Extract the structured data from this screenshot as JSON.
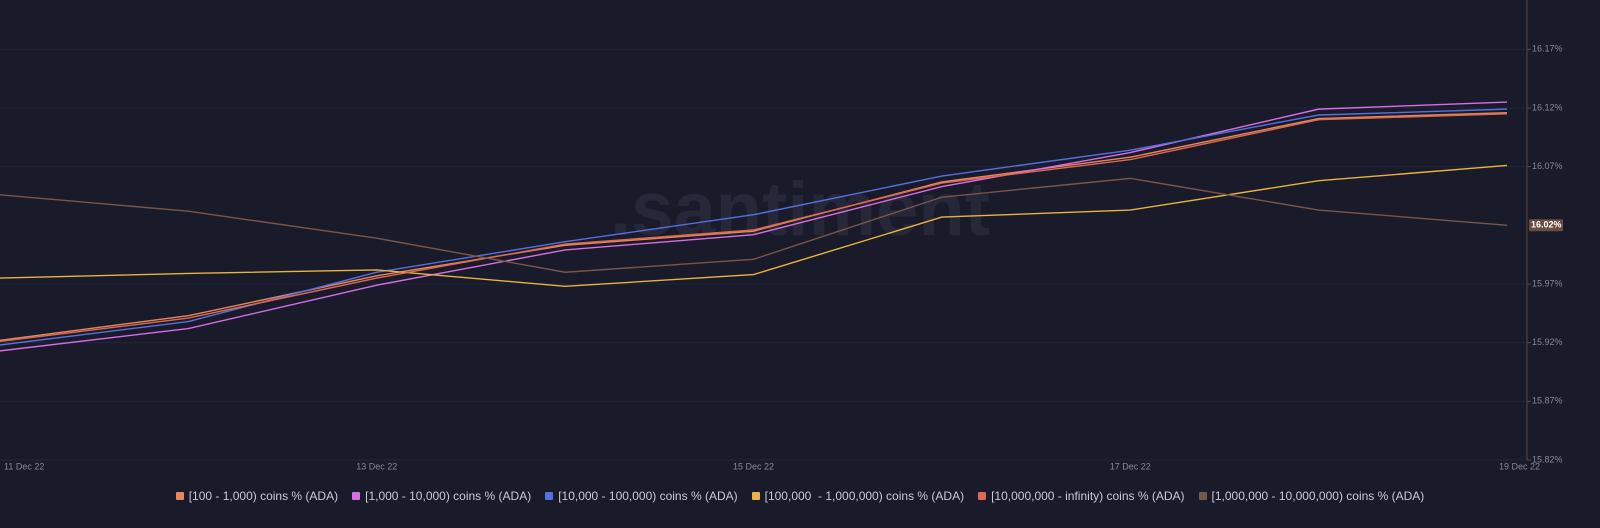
{
  "chart_data": {
    "type": "line",
    "watermark": ".santiment",
    "categories": [
      "11 Dec 22",
      null,
      "13 Dec 22",
      null,
      "15 Dec 22",
      null,
      "17 Dec 22",
      null,
      "19 Dec 22"
    ],
    "ylim": [
      15.82,
      16.212
    ],
    "yticks": [
      {
        "value": 15.82,
        "label": "15.82%"
      },
      {
        "value": 15.87,
        "label": "15.87%"
      },
      {
        "value": 15.92,
        "label": "15.92%"
      },
      {
        "value": 15.97,
        "label": "15.97%"
      },
      {
        "value": 16.07,
        "label": "16.07%"
      },
      {
        "value": 16.12,
        "label": "16.12%"
      },
      {
        "value": 16.17,
        "label": "16.17%"
      }
    ],
    "grid": true,
    "series": [
      {
        "name": "[100 - 1,000) coins % (ADA)",
        "color": "#e8875c",
        "values": [
          15.922,
          15.943,
          15.977,
          16.003,
          16.015,
          16.057,
          16.078,
          16.111,
          16.116
        ]
      },
      {
        "name": "[1,000 - 10,000) coins % (ADA)",
        "color": "#d66ee6",
        "values": [
          15.913,
          15.932,
          15.969,
          15.999,
          16.012,
          16.053,
          16.082,
          16.119,
          16.125
        ]
      },
      {
        "name": "[10,000 - 100,000) coins % (ADA)",
        "color": "#5470e0",
        "values": [
          15.918,
          15.938,
          15.98,
          16.006,
          16.029,
          16.062,
          16.084,
          16.114,
          16.119
        ]
      },
      {
        "name": "[100,000  - 1,000,000) coins % (ADA)",
        "color": "#e9b33f",
        "values": [
          15.975,
          15.979,
          15.982,
          15.968,
          15.978,
          16.027,
          16.033,
          16.058,
          16.071
        ]
      },
      {
        "name": "[10,000,000 - infinity) coins % (ADA)",
        "color": "#dd6a50",
        "values": [
          15.921,
          15.941,
          15.975,
          16.004,
          16.016,
          16.056,
          16.076,
          16.11,
          16.115
        ]
      },
      {
        "name": "[1,000,000 - 10,000,000) coins % (ADA)",
        "color": "#7a5548",
        "values": [
          16.046,
          16.032,
          16.009,
          15.98,
          15.991,
          16.044,
          16.06,
          16.033,
          16.02
        ],
        "value_labels": [
          null,
          null,
          null,
          null,
          null,
          null,
          null,
          null,
          "16.02%"
        ]
      }
    ]
  }
}
